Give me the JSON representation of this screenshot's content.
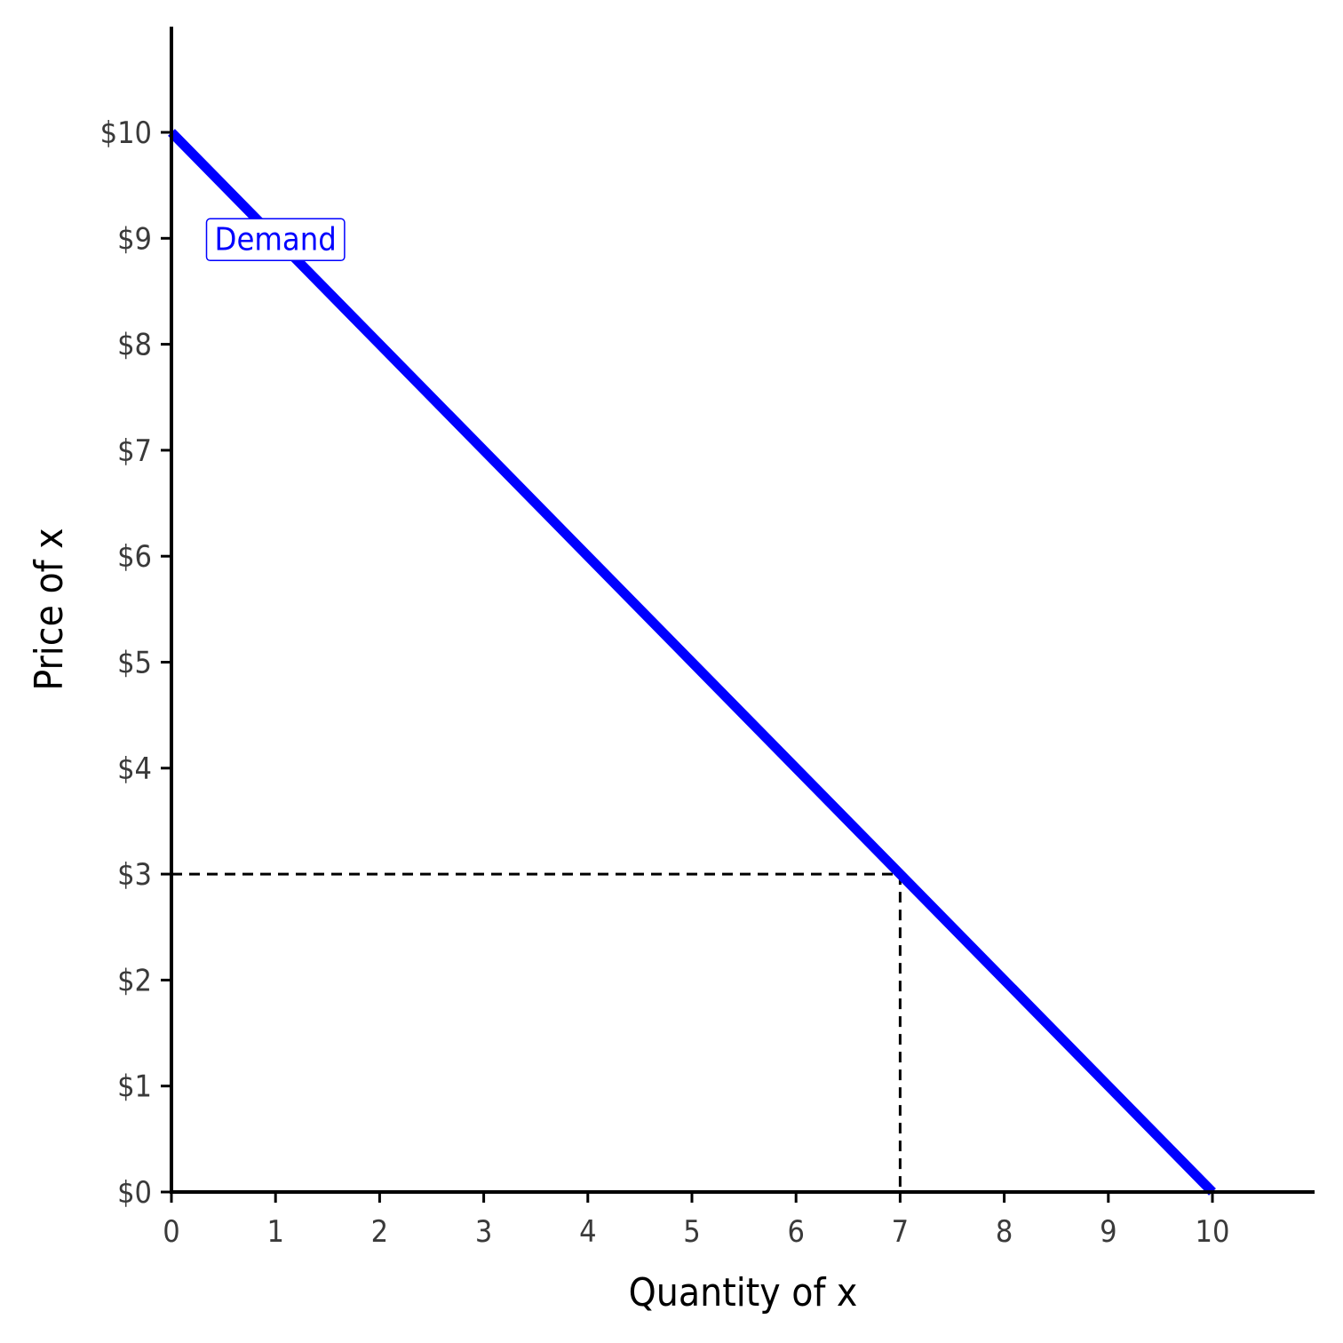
{
  "chart_data": {
    "type": "line",
    "title": "",
    "xlabel": "Quantity of x",
    "ylabel": "Price of x",
    "xlim": [
      0,
      11
    ],
    "ylim": [
      0,
      11
    ],
    "x_ticks": [
      0,
      1,
      2,
      3,
      4,
      5,
      6,
      7,
      8,
      9,
      10
    ],
    "x_tick_labels": [
      "0",
      "1",
      "2",
      "3",
      "4",
      "5",
      "6",
      "7",
      "8",
      "9",
      "10"
    ],
    "y_ticks": [
      0,
      1,
      2,
      3,
      4,
      5,
      6,
      7,
      8,
      9,
      10
    ],
    "y_tick_labels": [
      "$0",
      "$1",
      "$2",
      "$3",
      "$4",
      "$5",
      "$6",
      "$7",
      "$8",
      "$9",
      "$10"
    ],
    "grid": false,
    "series": [
      {
        "name": "Demand",
        "color": "#0000ff",
        "points": [
          {
            "x": 0,
            "y": 10
          },
          {
            "x": 10,
            "y": 0
          }
        ]
      }
    ],
    "annotations": [
      {
        "type": "label",
        "text": "Demand",
        "x": 1,
        "y": 9,
        "color": "#0000ff"
      }
    ],
    "reference_point": {
      "x": 7,
      "y": 3,
      "style": "dashed",
      "color": "#000000"
    }
  }
}
